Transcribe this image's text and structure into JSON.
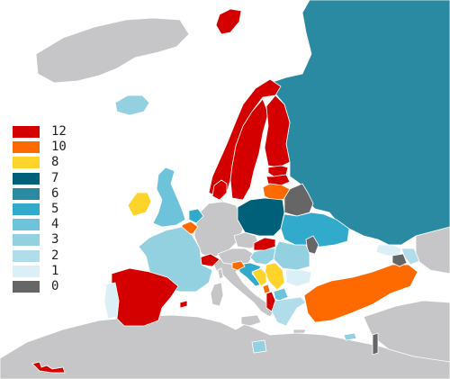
{
  "colors": {
    "sea": "#ffffff",
    "land": "#c6c6c8",
    "border": "#ffffff"
  },
  "legend": {
    "items": [
      {
        "label": "12",
        "color": "#d40000"
      },
      {
        "label": "10",
        "color": "#ff6a00"
      },
      {
        "label": "8",
        "color": "#ffd42a"
      },
      {
        "label": "7",
        "color": "#00607a"
      },
      {
        "label": "6",
        "color": "#2a8aa2"
      },
      {
        "label": "5",
        "color": "#31aacb"
      },
      {
        "label": "4",
        "color": "#6cc3da"
      },
      {
        "label": "3",
        "color": "#93d0e0"
      },
      {
        "label": "2",
        "color": "#b1dce9"
      },
      {
        "label": "1",
        "color": "#daeff6"
      },
      {
        "label": "0",
        "color": "#666666"
      }
    ]
  },
  "regions": [
    {
      "id": "russia",
      "points": "6"
    },
    {
      "id": "spain",
      "points": "12"
    },
    {
      "id": "portugal",
      "points": "1"
    },
    {
      "id": "france",
      "points": "3"
    },
    {
      "id": "united-kingdom",
      "points": "4"
    },
    {
      "id": "ireland",
      "points": "8"
    },
    {
      "id": "iceland",
      "points": "3"
    },
    {
      "id": "norway",
      "points": "12"
    },
    {
      "id": "sweden",
      "points": "12"
    },
    {
      "id": "finland",
      "points": "12"
    },
    {
      "id": "denmark",
      "points": "12"
    },
    {
      "id": "estonia",
      "points": "12"
    },
    {
      "id": "latvia",
      "points": "12"
    },
    {
      "id": "lithuania",
      "points": "10"
    },
    {
      "id": "belarus",
      "points": "0"
    },
    {
      "id": "poland",
      "points": "7"
    },
    {
      "id": "ukraine",
      "points": "5"
    },
    {
      "id": "netherlands",
      "points": "5"
    },
    {
      "id": "belgium",
      "points": "10"
    },
    {
      "id": "switzerland",
      "points": "12"
    },
    {
      "id": "slovakia",
      "points": "12"
    },
    {
      "id": "slovenia",
      "points": "10"
    },
    {
      "id": "croatia",
      "points": "5"
    },
    {
      "id": "bosnia",
      "points": "8"
    },
    {
      "id": "serbia",
      "points": "8"
    },
    {
      "id": "montenegro",
      "points": "10"
    },
    {
      "id": "albania",
      "points": "12"
    },
    {
      "id": "north-macedonia",
      "points": "4"
    },
    {
      "id": "hungary",
      "points": "3"
    },
    {
      "id": "romania",
      "points": "3"
    },
    {
      "id": "moldova",
      "points": "0"
    },
    {
      "id": "bulgaria",
      "points": "1"
    },
    {
      "id": "greece",
      "points": "2"
    },
    {
      "id": "turkey",
      "points": "10"
    },
    {
      "id": "cyprus",
      "points": "3"
    },
    {
      "id": "georgia",
      "points": "1"
    },
    {
      "id": "armenia",
      "points": "0"
    },
    {
      "id": "azerbaijan",
      "points": "2"
    },
    {
      "id": "israel",
      "points": "0"
    },
    {
      "id": "malta",
      "points": "3"
    },
    {
      "id": "svalbard",
      "points": "12"
    },
    {
      "id": "canary-islands",
      "points": "12"
    },
    {
      "id": "balearic-islands",
      "points": "12"
    }
  ]
}
